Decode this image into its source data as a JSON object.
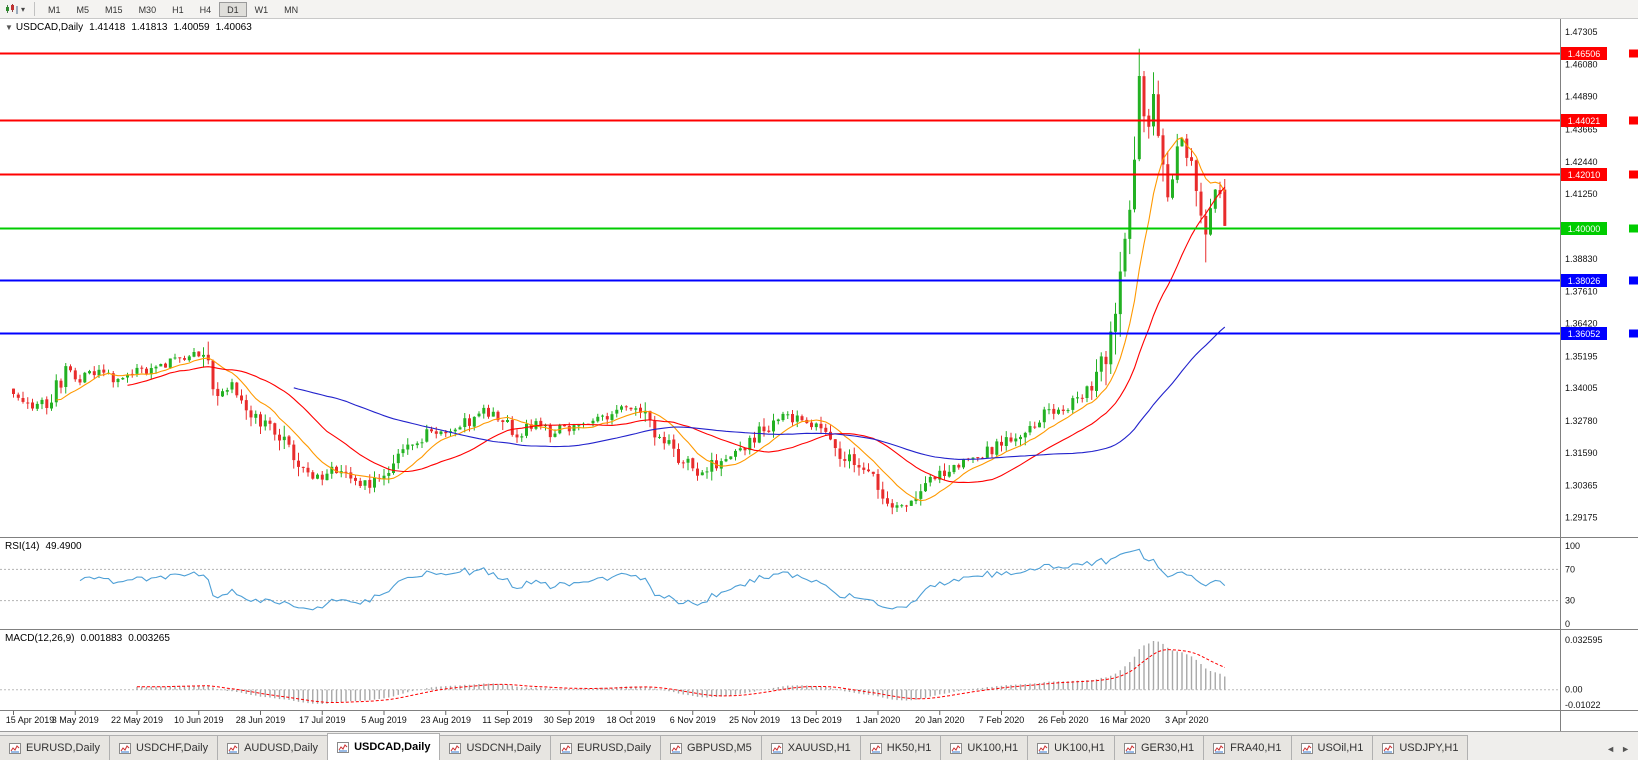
{
  "toolbar": {
    "timeframes": [
      "M1",
      "M5",
      "M15",
      "M30",
      "H1",
      "H4",
      "D1",
      "W1",
      "MN"
    ],
    "active_timeframe": "D1"
  },
  "main_chart": {
    "collapse_arrow": "▼",
    "symbol": "USDCAD,Daily",
    "open": "1.41418",
    "high": "1.41813",
    "low": "1.40059",
    "close": "1.40063"
  },
  "price_axis": {
    "labels": [
      "1.47305",
      "1.46080",
      "1.44890",
      "1.43665",
      "1.42440",
      "1.41250",
      "1.40000",
      "1.38830",
      "1.37610",
      "1.36420",
      "1.35195",
      "1.34005",
      "1.32780",
      "1.31590",
      "1.30365",
      "1.29175"
    ]
  },
  "hlines": [
    {
      "value": 1.46506,
      "label": "1.46506",
      "color": "#ff0000"
    },
    {
      "value": 1.44021,
      "label": "1.44021",
      "color": "#ff0000"
    },
    {
      "value": 1.4201,
      "label": "1.42010",
      "color": "#ff0000"
    },
    {
      "value": 1.4,
      "label": "1.40000",
      "color": "#00cc00"
    },
    {
      "value": 1.38026,
      "label": "1.38026",
      "color": "#0000ff"
    },
    {
      "value": 1.36052,
      "label": "1.36052",
      "color": "#0000ff"
    }
  ],
  "date_axis": [
    "15 Apr 2019",
    "3 May 2019",
    "22 May 2019",
    "10 Jun 2019",
    "28 Jun 2019",
    "17 Jul 2019",
    "5 Aug 2019",
    "23 Aug 2019",
    "11 Sep 2019",
    "30 Sep 2019",
    "18 Oct 2019",
    "6 Nov 2019",
    "25 Nov 2019",
    "13 Dec 2019",
    "1 Jan 2020",
    "20 Jan 2020",
    "7 Feb 2020",
    "26 Feb 2020",
    "16 Mar 2020",
    "3 Apr 2020"
  ],
  "rsi_panel": {
    "name": "RSI(14)",
    "value": "49.4900",
    "axis_labels": [
      "100",
      "70",
      "30",
      "0"
    ],
    "levels": [
      70,
      30
    ],
    "line_color": "#4d9fd6"
  },
  "macd_panel": {
    "name": "MACD(12,26,9)",
    "macd_value": "0.001883",
    "signal_value": "0.003265",
    "axis_labels": [
      "0.032595",
      "0.00",
      "-0.01022"
    ],
    "hist_color": "#a8a8a8",
    "signal_color": "#ff0000"
  },
  "tabs": [
    {
      "label": "EURUSD,Daily",
      "active": false
    },
    {
      "label": "USDCHF,Daily",
      "active": false
    },
    {
      "label": "AUDUSD,Daily",
      "active": false
    },
    {
      "label": "USDCAD,Daily",
      "active": true
    },
    {
      "label": "USDCNH,Daily",
      "active": false
    },
    {
      "label": "EURUSD,Daily",
      "active": false
    },
    {
      "label": "GBPUSD,M5",
      "active": false
    },
    {
      "label": "XAUUSD,H1",
      "active": false
    },
    {
      "label": "HK50,H1",
      "active": false
    },
    {
      "label": "UK100,H1",
      "active": false
    },
    {
      "label": "UK100,H1",
      "active": false
    },
    {
      "label": "GER30,H1",
      "active": false
    },
    {
      "label": "FRA40,H1",
      "active": false
    },
    {
      "label": "USOil,H1",
      "active": false
    },
    {
      "label": "USDJPY,H1",
      "active": false
    }
  ],
  "tab_scroll": {
    "left": "◄",
    "right": "►"
  },
  "chart_data": {
    "type": "candlestick",
    "symbol": "USDCAD",
    "timeframe": "Daily",
    "candle_count": 256,
    "ticks_every": 13,
    "y_range": [
      1.2845,
      1.4775
    ],
    "up_color": "#23b123",
    "down_color": "#e82c2c",
    "seed": 20200417,
    "close_waypoints": [
      [
        0,
        1.337
      ],
      [
        4,
        1.333
      ],
      [
        8,
        1.3355
      ],
      [
        11,
        1.348
      ],
      [
        14,
        1.3435
      ],
      [
        18,
        1.3465
      ],
      [
        22,
        1.343
      ],
      [
        26,
        1.3458
      ],
      [
        30,
        1.3472
      ],
      [
        34,
        1.35
      ],
      [
        38,
        1.3528
      ],
      [
        41,
        1.348
      ],
      [
        43,
        1.336
      ],
      [
        46,
        1.3415
      ],
      [
        49,
        1.333
      ],
      [
        53,
        1.3268
      ],
      [
        57,
        1.32
      ],
      [
        60,
        1.3092
      ],
      [
        64,
        1.3062
      ],
      [
        68,
        1.3098
      ],
      [
        71,
        1.3062
      ],
      [
        75,
        1.304
      ],
      [
        79,
        1.311
      ],
      [
        83,
        1.318
      ],
      [
        87,
        1.3232
      ],
      [
        91,
        1.3228
      ],
      [
        95,
        1.327
      ],
      [
        99,
        1.3312
      ],
      [
        103,
        1.3292
      ],
      [
        106,
        1.3222
      ],
      [
        110,
        1.3282
      ],
      [
        113,
        1.3232
      ],
      [
        117,
        1.3258
      ],
      [
        121,
        1.3268
      ],
      [
        125,
        1.3292
      ],
      [
        129,
        1.3322
      ],
      [
        133,
        1.3292
      ],
      [
        137,
        1.3202
      ],
      [
        141,
        1.3132
      ],
      [
        145,
        1.3072
      ],
      [
        149,
        1.3142
      ],
      [
        153,
        1.3172
      ],
      [
        157,
        1.3232
      ],
      [
        161,
        1.3292
      ],
      [
        165,
        1.3282
      ],
      [
        169,
        1.3252
      ],
      [
        173,
        1.3172
      ],
      [
        177,
        1.3112
      ],
      [
        181,
        1.3052
      ],
      [
        185,
        1.2962
      ],
      [
        189,
        1.2978
      ],
      [
        193,
        1.3052
      ],
      [
        197,
        1.3102
      ],
      [
        201,
        1.3142
      ],
      [
        205,
        1.3162
      ],
      [
        209,
        1.3202
      ],
      [
        213,
        1.3238
      ],
      [
        217,
        1.3302
      ],
      [
        221,
        1.3322
      ],
      [
        225,
        1.3382
      ],
      [
        228,
        1.342
      ],
      [
        230,
        1.356
      ],
      [
        232,
        1.371
      ],
      [
        234,
        1.39
      ],
      [
        235,
        1.406
      ],
      [
        236,
        1.43
      ],
      [
        237,
        1.452
      ],
      [
        238,
        1.443
      ],
      [
        239,
        1.438
      ],
      [
        240,
        1.449
      ],
      [
        241,
        1.44
      ],
      [
        242,
        1.431
      ],
      [
        243,
        1.412
      ],
      [
        244,
        1.418
      ],
      [
        245,
        1.426
      ],
      [
        246,
        1.433
      ],
      [
        247,
        1.427
      ],
      [
        248,
        1.418
      ],
      [
        249,
        1.412
      ],
      [
        250,
        1.405
      ],
      [
        251,
        1.399
      ],
      [
        252,
        1.409
      ],
      [
        253,
        1.416
      ],
      [
        254,
        1.4145
      ],
      [
        255,
        1.40063
      ]
    ],
    "last_candle": {
      "open": 1.41418,
      "high": 1.41813,
      "low": 1.40059,
      "close": 1.40063
    },
    "high_marks": [
      [
        237,
        1.4668
      ],
      [
        240,
        1.458
      ]
    ],
    "low_marks": [
      [
        185,
        1.293
      ],
      [
        251,
        1.387
      ]
    ],
    "moving_averages": [
      {
        "period": 10,
        "color": "#ff9900"
      },
      {
        "period": 25,
        "color": "#ff0000"
      },
      {
        "period": 60,
        "color": "#2222cc"
      }
    ],
    "indicators": {
      "rsi": {
        "period": 14,
        "last": 49.49
      },
      "macd": {
        "fast": 12,
        "slow": 26,
        "signal": 9,
        "last": 0.001883,
        "last_signal": 0.003265
      }
    }
  }
}
